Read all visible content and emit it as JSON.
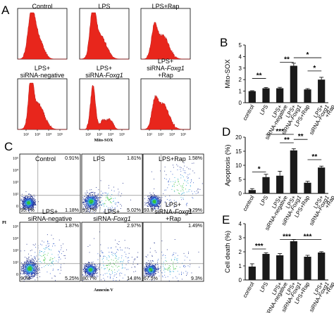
{
  "panels": {
    "A": "A",
    "B": "B",
    "C": "C",
    "D": "D",
    "E": "E"
  },
  "histograms": {
    "titles": [
      "Control",
      "LPS",
      "LPS+Rap",
      "LPS+\nsiRNA-negative",
      "LPS+\nsiRNA-Foxg1",
      "LPS+\nsiRNA-Foxg1\n+Rap"
    ],
    "xticks": [
      "10²",
      "10³",
      "10⁴",
      "10⁵"
    ],
    "xlabel": "Mito-SOX",
    "color": "#e8261c"
  },
  "flow": {
    "titles": [
      "Control",
      "LPS",
      "LPS+Rap",
      "LPS+\nsiRNA-negative",
      "LPS+\nsiRNA-Foxg1",
      "LPS+\nsiRNA-Foxg1\n+Rap"
    ],
    "quadrants": [
      {
        "ur": "0.91%",
        "lr": "1.18%",
        "ll": "95.7%"
      },
      {
        "ur": "1.81%",
        "lr": "5.02%",
        "ll": "91.7%"
      },
      {
        "ur": "1.58%",
        "lr": "3.29%",
        "ll": "93.8"
      },
      {
        "ur": "1.87%",
        "lr": "5.25%",
        "ll": "90%"
      },
      {
        "ur": "2.97%",
        "lr": "14.8%",
        "ll": "80.7%"
      },
      {
        "ur": "1.49%",
        "lr": "9.3%",
        "ll": "67.5%"
      }
    ],
    "yticks": [
      "10⁵",
      "10⁴",
      "10³",
      "10²",
      "0"
    ],
    "xlabel": "Annexin V",
    "ylabel": "PI"
  },
  "chart_data": [
    {
      "type": "bar",
      "panel": "B",
      "categories": [
        "control",
        "LPS",
        "LPS+\nsiRNA-negative",
        "LPS+\nsiRNA-Foxg1",
        "LPS+Rap",
        "LPS+\nsiRNA-Foxg1\n+Rap"
      ],
      "values": [
        1.0,
        1.25,
        1.25,
        3.2,
        1.15,
        2.0
      ],
      "errors": [
        0.04,
        0.07,
        0.08,
        0.22,
        0.07,
        0.2
      ],
      "ylabel": "Mito-SOX",
      "ylim": [
        0,
        5
      ],
      "yticks": [
        "0",
        "1",
        "2",
        "3",
        "4",
        "5"
      ],
      "significance": [
        "**",
        "**",
        "*",
        "*"
      ]
    },
    {
      "type": "bar",
      "panel": "D",
      "categories": [
        "control",
        "LPS",
        "LPS+\nsiRNA-negative",
        "LPS+\nsiRNA-Foxg1",
        "LPS+Rap",
        "LPS+\nsiRNA-Foxg1\n+Rap"
      ],
      "values": [
        1.2,
        5.8,
        6.3,
        15.3,
        3.8,
        9.2
      ],
      "errors": [
        0.5,
        1.0,
        1.6,
        0.6,
        0.5,
        0.5
      ],
      "ylabel": "Apoptosis (%)",
      "ylim": [
        0,
        20
      ],
      "yticks": [
        "0",
        "5",
        "10",
        "15",
        "20"
      ],
      "significance": [
        "*",
        "***",
        "**",
        "**",
        "**"
      ]
    },
    {
      "type": "bar",
      "panel": "E",
      "categories": [
        "control",
        "LPS",
        "LPS+\nsiRNA-negative",
        "LPS+\nsiRNA-Foxg1",
        "LPS+Rap",
        "LPS+\nsiRNA-Foxg1\n+Rap"
      ],
      "values": [
        0.95,
        1.85,
        1.75,
        2.75,
        1.65,
        1.95
      ],
      "errors": [
        0.2,
        0.08,
        0.12,
        0.12,
        0.1,
        0.06
      ],
      "ylabel": "Cell death (%)",
      "ylim": [
        0,
        4
      ],
      "yticks": [
        "0",
        "1",
        "2",
        "3",
        "4"
      ],
      "significance": [
        "***",
        "***",
        "***"
      ]
    }
  ]
}
